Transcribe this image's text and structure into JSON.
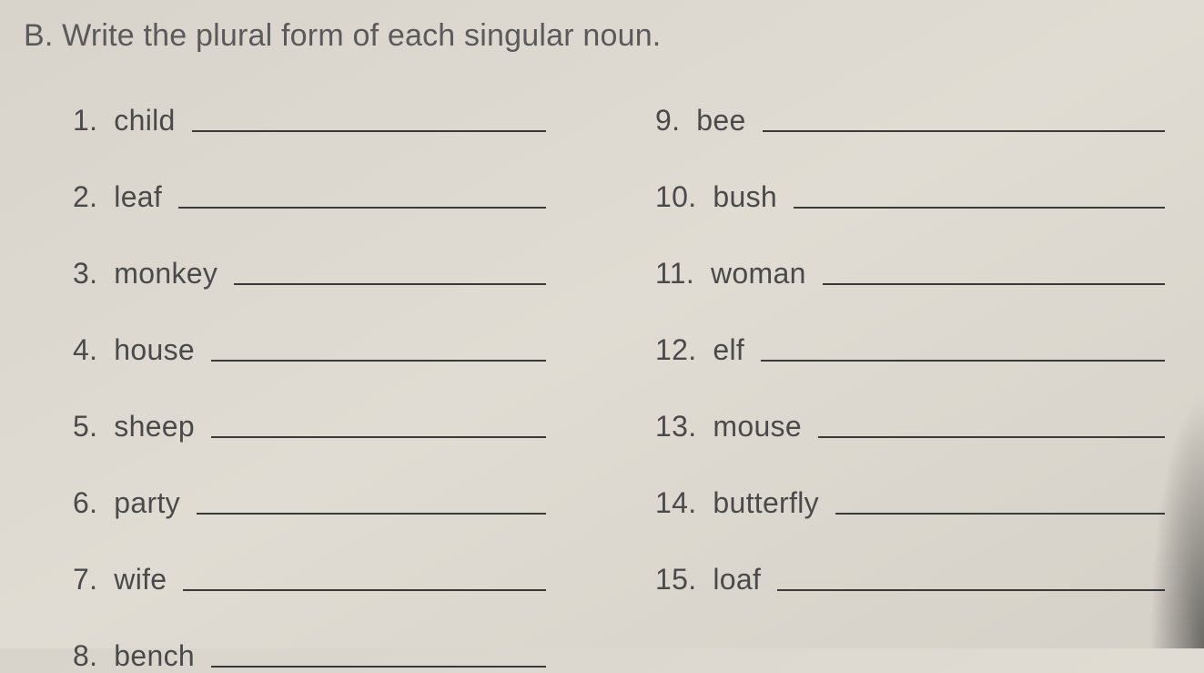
{
  "instruction": "B. Write the plural form of each singular noun.",
  "left_column": [
    {
      "number": "1.",
      "word": "child"
    },
    {
      "number": "2.",
      "word": "leaf"
    },
    {
      "number": "3.",
      "word": "monkey"
    },
    {
      "number": "4.",
      "word": "house"
    },
    {
      "number": "5.",
      "word": "sheep"
    },
    {
      "number": "6.",
      "word": "party"
    },
    {
      "number": "7.",
      "word": "wife"
    },
    {
      "number": "8.",
      "word": "bench"
    }
  ],
  "right_column": [
    {
      "number": "9.",
      "word": "bee"
    },
    {
      "number": "10.",
      "word": "bush"
    },
    {
      "number": "11.",
      "word": "woman"
    },
    {
      "number": "12.",
      "word": "elf"
    },
    {
      "number": "13.",
      "word": "mouse"
    },
    {
      "number": "14.",
      "word": "butterfly"
    },
    {
      "number": "15.",
      "word": "loaf"
    }
  ],
  "colors": {
    "background": "#dcd8cf",
    "text": "#4a4a4a",
    "line": "#3a3a3a"
  },
  "typography": {
    "instruction_fontsize": 34,
    "item_fontsize": 32,
    "font_family": "Segoe UI / Optima sans-serif"
  }
}
